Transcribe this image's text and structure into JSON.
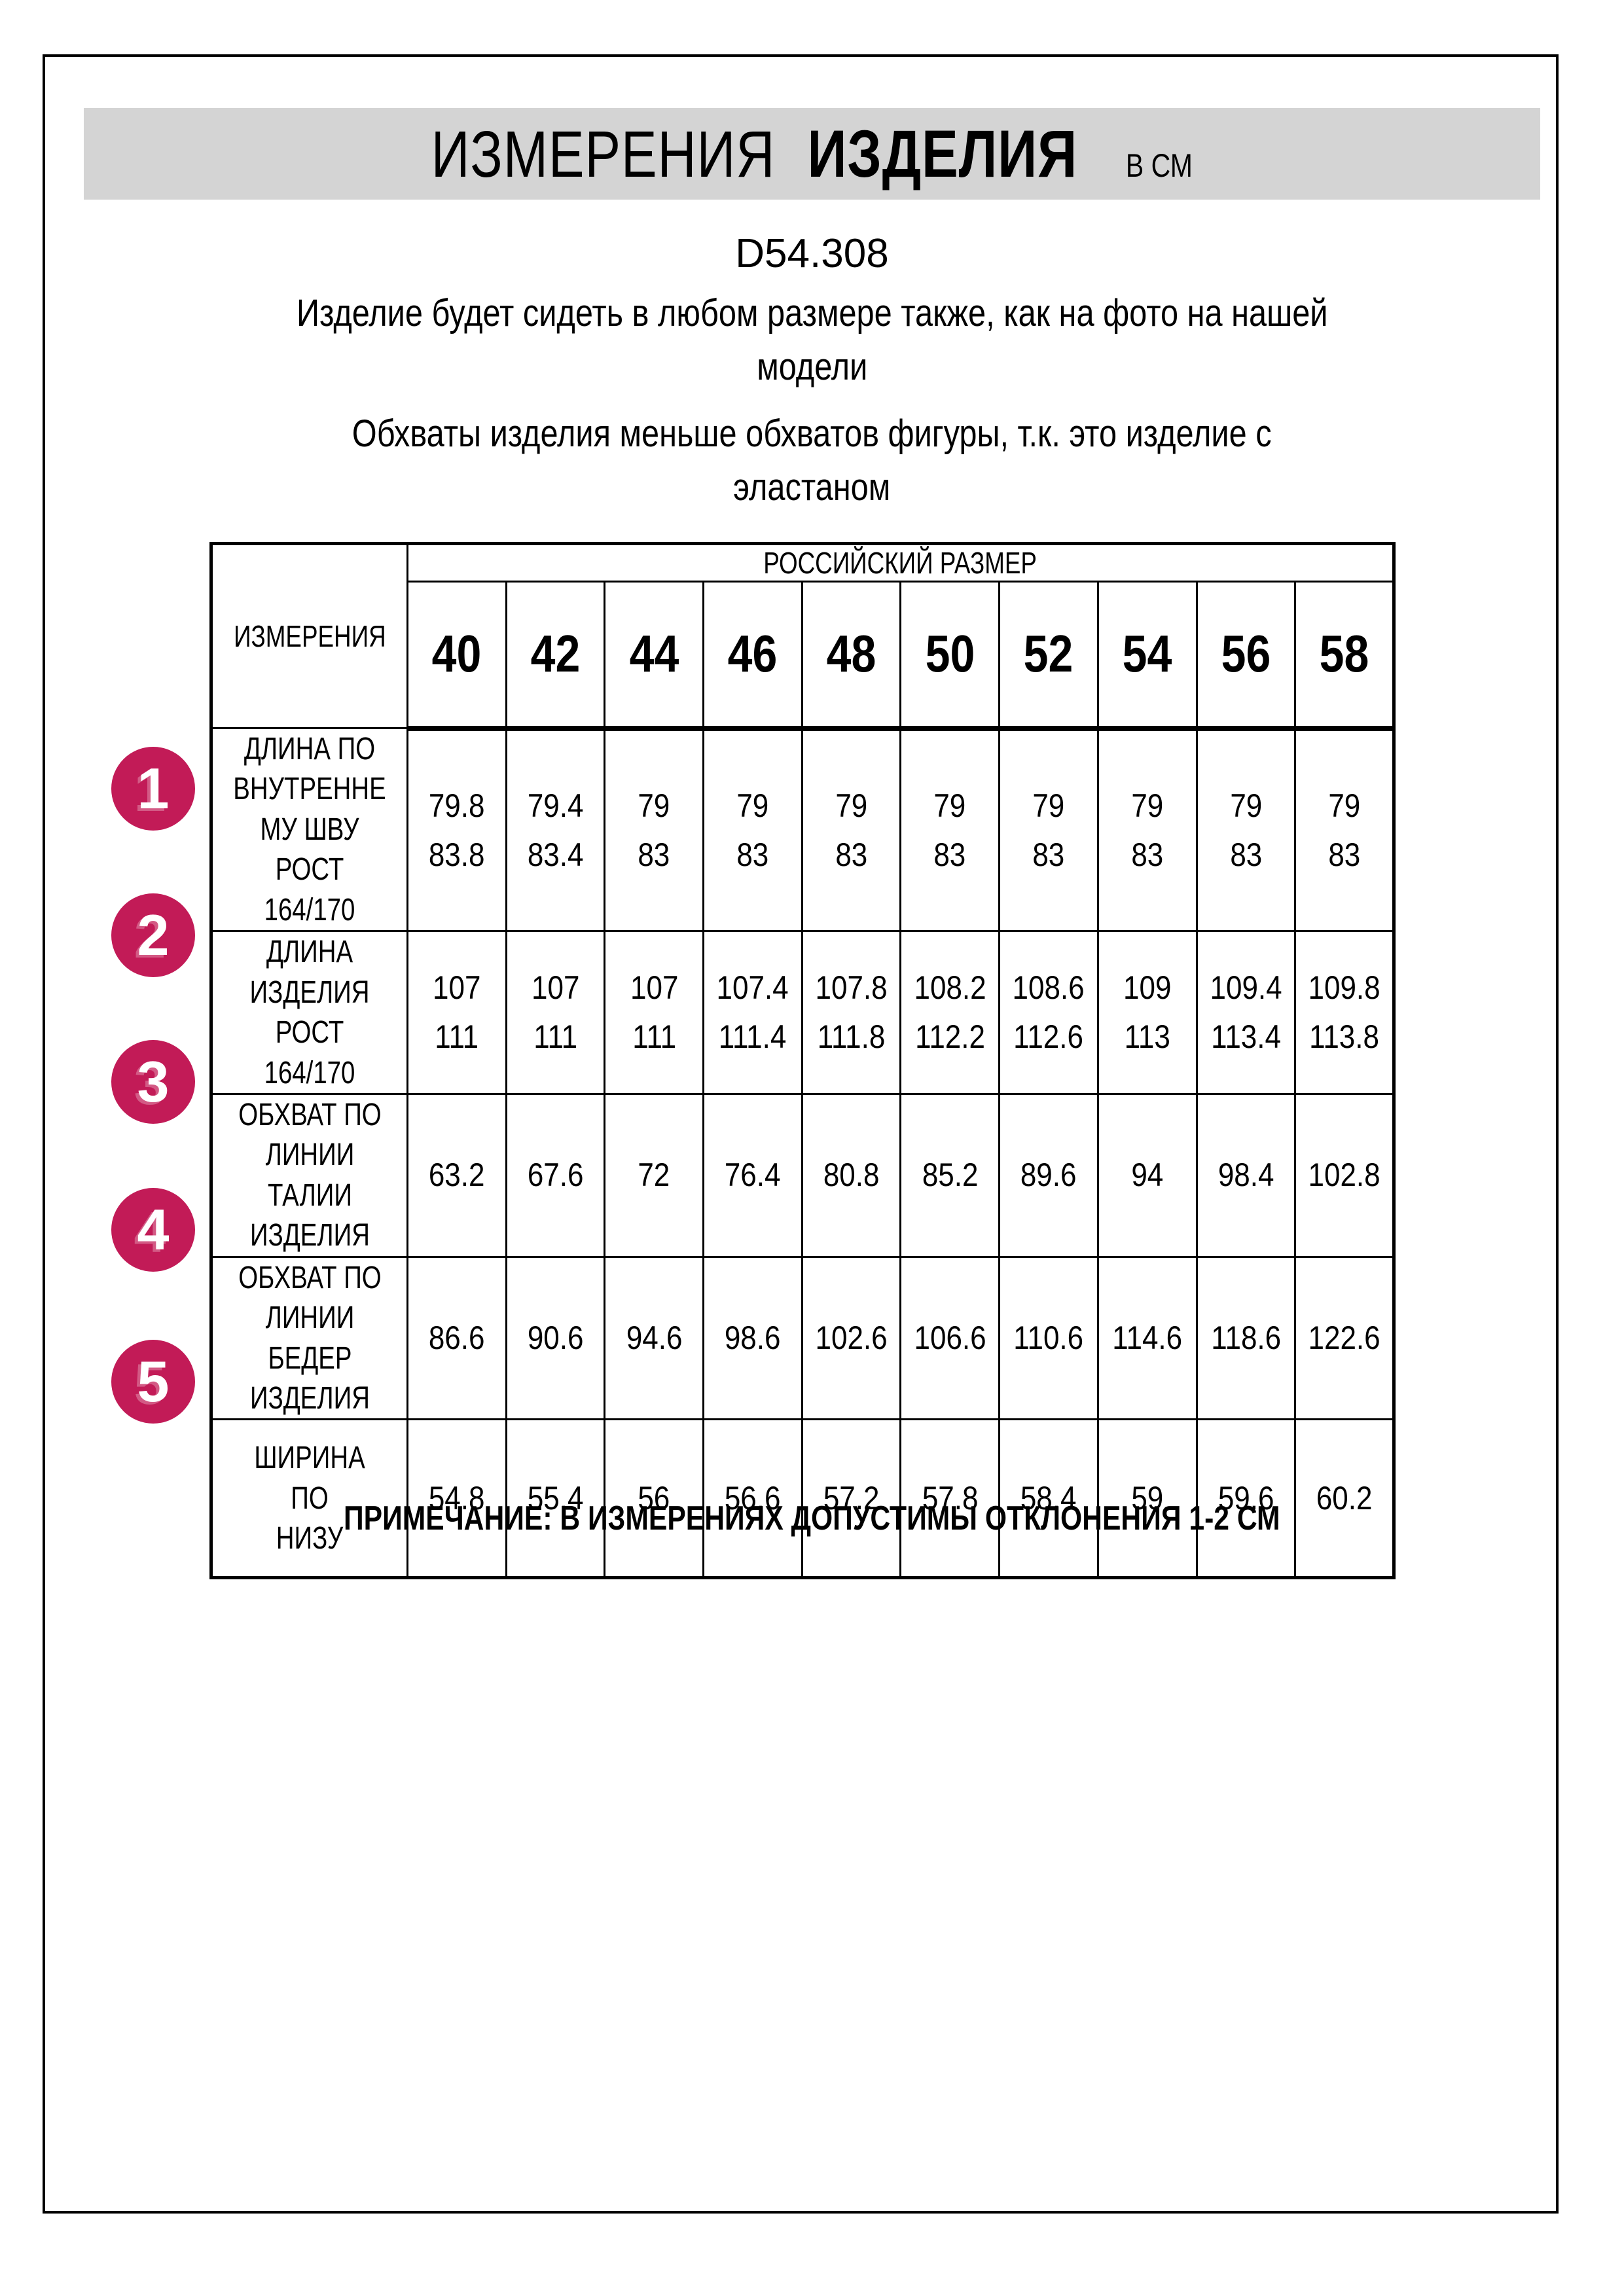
{
  "header": {
    "title_word1": "ИЗМЕРЕНИЯ",
    "title_word2": "ИЗДЕЛИЯ",
    "title_units": "В СМ",
    "model_code": "D54.308",
    "fit_note": "Изделие будет сидеть в любом размере также, как на фото на нашей\nмодели",
    "elastane_note": "Обхваты изделия меньше обхватов фигуры, т.к. это изделие с\nэластаном"
  },
  "table": {
    "corner_label": "ИЗМЕРЕНИЯ",
    "group_header": "РОССИЙСКИЙ РАЗМЕР",
    "sizes": [
      "40",
      "42",
      "44",
      "46",
      "48",
      "50",
      "52",
      "54",
      "56",
      "58"
    ],
    "rows": [
      {
        "num": "1",
        "label": "ДЛИНА ПО\nВНУТРЕННЕ\nМУ ШВУ\nРОСТ 164/170",
        "values": [
          "79.8\n83.8",
          "79.4\n83.4",
          "79\n83",
          "79\n83",
          "79\n83",
          "79\n83",
          "79\n83",
          "79\n83",
          "79\n83",
          "79\n83"
        ]
      },
      {
        "num": "2",
        "label": "ДЛИНА\nИЗДЕЛИЯ\nРОСТ 164/170",
        "values": [
          "107\n111",
          "107\n111",
          "107\n111",
          "107.4\n111.4",
          "107.8\n111.8",
          "108.2\n112.2",
          "108.6\n112.6",
          "109\n113",
          "109.4\n113.4",
          "109.8\n113.8"
        ]
      },
      {
        "num": "3",
        "label": "ОБХВАТ ПО\nЛИНИИ\nТАЛИИ\nИЗДЕЛИЯ",
        "values": [
          "63.2",
          "67.6",
          "72",
          "76.4",
          "80.8",
          "85.2",
          "89.6",
          "94",
          "98.4",
          "102.8"
        ]
      },
      {
        "num": "4",
        "label": "ОБХВАТ ПО\nЛИНИИ\nБЕДЕР\nИЗДЕЛИЯ",
        "values": [
          "86.6",
          "90.6",
          "94.6",
          "98.6",
          "102.6",
          "106.6",
          "110.6",
          "114.6",
          "118.6",
          "122.6"
        ]
      },
      {
        "num": "5",
        "label": "ШИРИНА ПО\nНИЗУ",
        "values": [
          "54.8",
          "55.4",
          "56",
          "56.6",
          "57.2",
          "57.8",
          "58.4",
          "59",
          "59.6",
          "60.2"
        ]
      }
    ]
  },
  "footer": {
    "note": "ПРИМЕЧАНИЕ: В ИЗМЕРЕНИЯХ ДОПУСТИМЫ ОТКЛОНЕНИЯ 1-2 СМ"
  },
  "colors": {
    "badge_pink": "#c21b57",
    "banner_gray": "#d4d4d4",
    "line_black": "#000000"
  }
}
